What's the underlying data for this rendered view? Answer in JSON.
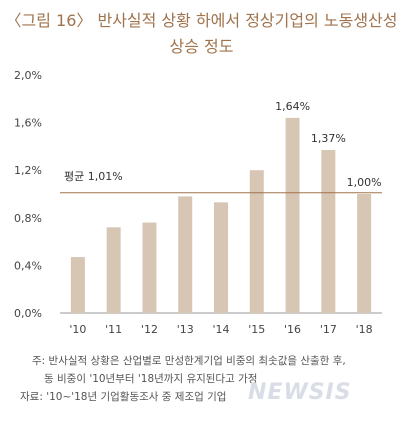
{
  "chart_data": {
    "type": "bar",
    "title_line1": "〈그림 16〉 반사실적 상황 하에서 정상기업의 노동생산성",
    "title_line2": "상승 정도",
    "categories": [
      "'10",
      "'11",
      "'12",
      "'13",
      "'14",
      "'15",
      "'16",
      "'17",
      "'18"
    ],
    "values": [
      0.47,
      0.72,
      0.76,
      0.98,
      0.93,
      1.2,
      1.64,
      1.37,
      1.0
    ],
    "value_unit": "%",
    "data_labels": {
      "6": "1,64%",
      "7": "1,37%",
      "8": "1,00%"
    },
    "yticks": [
      "0,0%",
      "0,4%",
      "0,8%",
      "1,2%",
      "1,6%",
      "2,0%"
    ],
    "ylim": [
      0,
      2.0
    ],
    "average": {
      "value": 1.01,
      "label": "평균 1,01%"
    },
    "grid": false,
    "colors": {
      "bar": "#d8c6b4",
      "average_line": "#a0734c",
      "label": "#333333"
    }
  },
  "notes": {
    "line1": "주: 반사실적 상황은 산업별로 만성한계기업 비중의 최솟값을 산출한 후,",
    "line2": "동 비중이 '10년부터 '18년까지 유지된다고 가정",
    "source": "자료: '10~'18년 기업활동조사 중 제조업 기업"
  },
  "watermark": "NEWSIS"
}
